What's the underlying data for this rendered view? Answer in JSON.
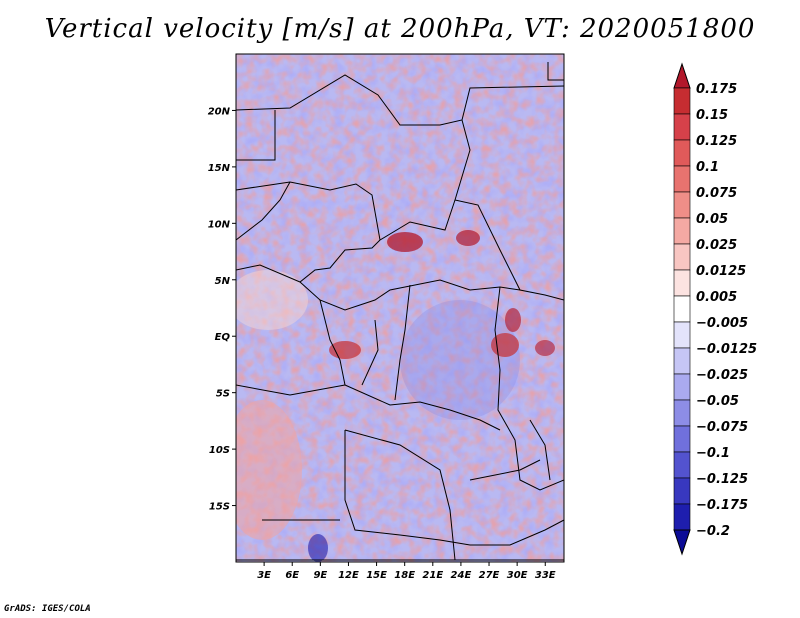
{
  "chart_data": {
    "type": "heatmap",
    "title": "Vertical velocity [m/s] at 200hPa, VT: 2020051800",
    "variable": "Vertical velocity",
    "units": "m/s",
    "level": "200hPa",
    "valid_time": "2020051800",
    "xlabel": "",
    "ylabel": "",
    "x_ticks": [
      "3E",
      "6E",
      "9E",
      "12E",
      "15E",
      "18E",
      "21E",
      "24E",
      "27E",
      "30E",
      "33E"
    ],
    "x_tick_values": [
      3,
      6,
      9,
      12,
      15,
      18,
      21,
      24,
      27,
      30,
      33
    ],
    "y_ticks": [
      "20N",
      "15N",
      "10N",
      "5N",
      "EQ",
      "5S",
      "10S",
      "15S"
    ],
    "y_tick_values": [
      20,
      15,
      10,
      5,
      0,
      -5,
      -10,
      -15
    ],
    "xlim": [
      0,
      35
    ],
    "ylim": [
      -20,
      25
    ],
    "colorbar": {
      "labels": [
        "0.175",
        "0.15",
        "0.125",
        "0.1",
        "0.075",
        "0.05",
        "0.025",
        "0.0125",
        "0.005",
        "−0.005",
        "−0.0125",
        "−0.025",
        "−0.05",
        "−0.075",
        "−0.1",
        "−0.125",
        "−0.175",
        "−0.2"
      ],
      "colors": [
        "#b2182b",
        "#c62d31",
        "#d6414a",
        "#e05a5a",
        "#e8736f",
        "#ef8e88",
        "#f4a9a3",
        "#f8c6c2",
        "#fce3e1",
        "#ffffff",
        "#e3e3fb",
        "#c6c6f5",
        "#aaaaef",
        "#8d8de6",
        "#7070dc",
        "#5353cf",
        "#3838bf",
        "#1e1eae",
        "#0b0b96"
      ]
    }
  },
  "credit": "GrADS: IGES/COLA"
}
